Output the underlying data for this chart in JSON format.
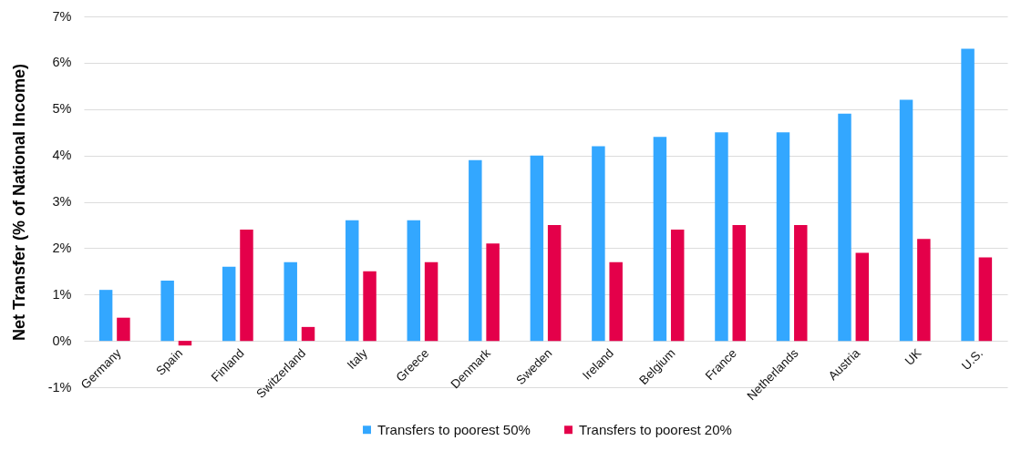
{
  "chart_data": {
    "type": "bar",
    "ylabel": "Net Transfer (% of National Income)",
    "categories": [
      "Germany",
      "Spain",
      "Finland",
      "Switzerland",
      "Italy",
      "Greece",
      "Denmark",
      "Sweden",
      "Ireland",
      "Belgium",
      "France",
      "Netherlands",
      "Austria",
      "UK",
      "U.S."
    ],
    "series": [
      {
        "name": "Transfers to poorest 50%",
        "color": "#33a7ff",
        "values": [
          1.1,
          1.3,
          1.6,
          1.7,
          2.6,
          2.6,
          3.9,
          4.0,
          4.2,
          4.4,
          4.5,
          4.5,
          4.9,
          5.2,
          6.3
        ]
      },
      {
        "name": "Transfers to poorest 20%",
        "color": "#e4004a",
        "values": [
          0.5,
          -0.1,
          2.4,
          0.3,
          1.5,
          1.7,
          2.1,
          2.5,
          1.7,
          2.4,
          2.5,
          2.5,
          1.9,
          2.2,
          1.8
        ]
      }
    ],
    "ylim": [
      -1,
      7
    ],
    "yticks": [
      {
        "value": -1,
        "label": "-1%"
      },
      {
        "value": 0,
        "label": "0%"
      },
      {
        "value": 1,
        "label": "1%"
      },
      {
        "value": 2,
        "label": "2%"
      },
      {
        "value": 3,
        "label": "3%"
      },
      {
        "value": 4,
        "label": "4%"
      },
      {
        "value": 5,
        "label": "5%"
      },
      {
        "value": 6,
        "label": "6%"
      },
      {
        "value": 7,
        "label": "7%"
      }
    ],
    "grid": "y",
    "legend": "bottom"
  }
}
